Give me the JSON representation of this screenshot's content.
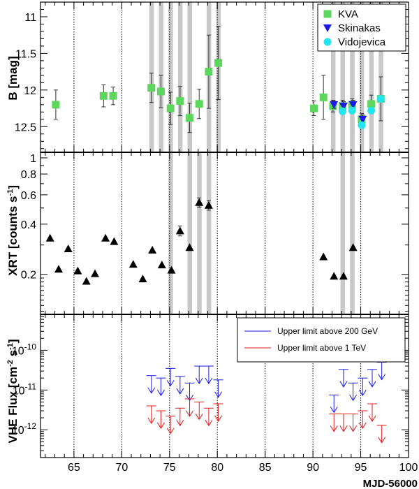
{
  "chart_data": [
    {
      "type": "scatter",
      "panel": "optical",
      "ylabel": "B [mag]",
      "ylim": [
        12.85,
        10.8
      ],
      "y_inverted": true,
      "yticks": [
        11,
        11.5,
        12,
        12.5
      ],
      "ytick_labels": [
        "11",
        "11.5",
        "12",
        "12.5"
      ],
      "legend": {
        "placement": "top-right",
        "entries": [
          {
            "name": "KVA",
            "color": "#5cd65c",
            "marker": "square"
          },
          {
            "name": "Skinakas",
            "color": "#1a1ae6",
            "marker": "triangle-down"
          },
          {
            "name": "Vidojevica",
            "color": "#22e5ee",
            "marker": "circle"
          }
        ]
      },
      "series": [
        {
          "name": "KVA",
          "color": "#5cd65c",
          "marker": "square",
          "x": [
            63.1,
            68.1,
            69.1,
            73.1,
            74.1,
            75.1,
            76.1,
            77.1,
            78.1,
            79.1,
            80.1,
            90.1,
            91.1,
            92.1,
            93.1,
            94.1,
            95.1,
            96.1,
            97.1
          ],
          "y": [
            12.2,
            12.08,
            12.08,
            11.97,
            12.02,
            12.25,
            12.15,
            12.38,
            12.19,
            11.75,
            11.63,
            12.25,
            12.1,
            12.22,
            12.22,
            12.2,
            12.4,
            12.19,
            12.12
          ],
          "err": [
            0.2,
            0.15,
            0.12,
            0.2,
            0.22,
            0.22,
            0.2,
            0.2,
            0.2,
            0.5,
            0.5,
            0.1,
            0.3,
            0.08,
            0.08,
            0.08,
            0.08,
            0.12,
            0.3
          ]
        },
        {
          "name": "Skinakas",
          "color": "#1a1ae6",
          "marker": "triangle-down",
          "x": [
            92.2,
            93.2,
            94.2,
            95.2
          ],
          "y": [
            12.2,
            12.22,
            12.2,
            12.4
          ],
          "err": [
            0.05,
            0.06,
            0.06,
            0.06
          ]
        },
        {
          "name": "Vidojevica",
          "color": "#22e5ee",
          "marker": "circle",
          "x": [
            93.1,
            94.1,
            95.1,
            96.1,
            97.1
          ],
          "y": [
            12.29,
            12.28,
            12.48,
            12.28,
            12.12
          ],
          "err": [
            0.04,
            0.04,
            0.04,
            0.04,
            0.04
          ]
        }
      ]
    },
    {
      "type": "scatter",
      "panel": "xray",
      "ylabel": "XRT [counts s-1]",
      "y_scale": "log",
      "ylim": [
        0.115,
        1.08
      ],
      "yticks": [
        0.2,
        0.4,
        0.6,
        0.8,
        1
      ],
      "ytick_labels": [
        "0.2",
        "0.4",
        "0.6",
        "0.8",
        "1"
      ],
      "series": [
        {
          "name": "XRT",
          "color": "#000000",
          "marker": "triangle-up",
          "x": [
            62.5,
            63.4,
            64.4,
            65.4,
            66.3,
            67.2,
            68.3,
            69.2,
            71.2,
            72.2,
            73.2,
            74.2,
            75.2,
            76.1,
            77.1,
            78.1,
            79.1,
            91.1,
            92.2,
            93.2,
            94.2
          ],
          "y": [
            0.33,
            0.215,
            0.285,
            0.21,
            0.182,
            0.202,
            0.33,
            0.315,
            0.23,
            0.188,
            0.28,
            0.228,
            0.212,
            0.365,
            0.29,
            0.54,
            0.52,
            0.255,
            0.195,
            0.195,
            0.29
          ],
          "err": [
            0,
            0,
            0,
            0,
            0,
            0,
            0,
            0,
            0,
            0,
            0,
            0,
            0,
            0.025,
            0,
            0.035,
            0.035,
            0,
            0,
            0,
            0
          ]
        }
      ]
    },
    {
      "type": "scatter",
      "panel": "vhe",
      "ylabel": "VHE Flux [cm-2 s-1]",
      "xlabel": "MJD-56000",
      "y_scale": "log",
      "ylim": [
        2e-13,
        8e-10
      ],
      "xlim": [
        61.5,
        100
      ],
      "xticks": [
        65,
        70,
        75,
        80,
        85,
        90,
        95,
        100
      ],
      "xtick_labels": [
        "65",
        "70",
        "75",
        "80",
        "85",
        "90",
        "95",
        "100"
      ],
      "yticks": [
        1e-12,
        1e-11,
        1e-10
      ],
      "legend": {
        "placement": "top-right",
        "entries": [
          {
            "name": "Upper limit above 200 GeV",
            "color": "#1a1ae6"
          },
          {
            "name": "Upper limit above 1 TeV",
            "color": "#e01818"
          }
        ]
      },
      "series": [
        {
          "name": "Upper limit above 200 GeV",
          "color": "#1a1ae6",
          "marker": "arrow-down",
          "x": [
            73.1,
            74.1,
            75.1,
            76.1,
            77.1,
            78.1,
            79.1,
            80.1,
            92.2,
            93.2,
            94.2,
            95.2,
            96.2,
            97.2
          ],
          "y": [
            2.3e-11,
            2e-11,
            3.5e-11,
            2.2e-11,
            1.5e-11,
            4e-11,
            4e-11,
            1.8e-11,
            7.5e-12,
            3.3e-11,
            1.5e-11,
            2e-11,
            3.3e-11,
            5e-11
          ]
        },
        {
          "name": "Upper limit above 1 TeV",
          "color": "#e01818",
          "marker": "arrow-down",
          "x": [
            73.1,
            74.1,
            75.1,
            76.1,
            77.1,
            78.1,
            79.1,
            80.1,
            92.2,
            93.2,
            94.2,
            95.2,
            96.2,
            97.2
          ],
          "y": [
            4e-12,
            3e-12,
            2.2e-12,
            3.5e-12,
            6e-12,
            5e-12,
            3.5e-12,
            4.5e-12,
            2.5e-12,
            2.5e-12,
            2.5e-12,
            3e-12,
            4.5e-12,
            1.3e-12
          ]
        }
      ]
    }
  ],
  "gray_bands": [
    73.1,
    74.1,
    75.1,
    76.1,
    77.1,
    79.1,
    80.1,
    92.1,
    93.1,
    94.1,
    95.1,
    96.1,
    97.1
  ],
  "gray_bands_xray": [
    75.1,
    77.1,
    78.1,
    79.1,
    93.1,
    94.1
  ],
  "dotted_lines": [
    65,
    70,
    75,
    80,
    85,
    90,
    95
  ]
}
